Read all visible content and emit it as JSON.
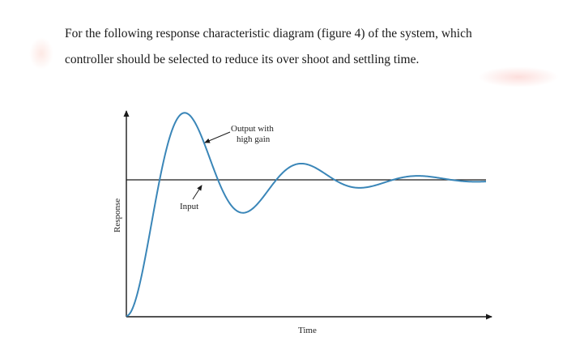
{
  "question": {
    "line1": "For the following response characteristic diagram (figure 4) of the system, which",
    "line2": "controller should be selected to reduce its over shoot and settling time."
  },
  "figure": {
    "ylabel": "Response",
    "xlabel": "Time",
    "annotation_output": [
      "Output with",
      "high gain"
    ],
    "annotation_input": "Input"
  },
  "colors": {
    "curve": "#3a86b8",
    "axis": "#1a1a1a",
    "text": "#1a1a1a"
  }
}
